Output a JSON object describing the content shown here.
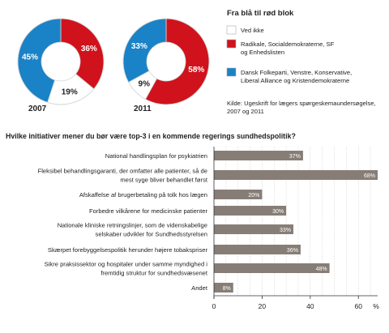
{
  "chart_data": [
    {
      "type": "pie",
      "variant": "donut",
      "year_label": "2007",
      "slices": [
        {
          "label": "Radikale, Socialdemokraterne, SF og Enhedslisten",
          "value": 36,
          "label_text": "36%",
          "color": "#d0121c"
        },
        {
          "label": "Ved ikke",
          "value": 19,
          "label_text": "19%",
          "color": "#ffffff"
        },
        {
          "label": "Dansk Folkeparti, Venstre, Konservative, Liberal Alliance og Kristendemokraterne",
          "value": 45,
          "label_text": "45%",
          "color": "#1a82c6"
        }
      ]
    },
    {
      "type": "pie",
      "variant": "donut",
      "year_label": "2011",
      "slices": [
        {
          "label": "Radikale, Socialdemokraterne, SF og Enhedslisten",
          "value": 58,
          "label_text": "58%",
          "color": "#d0121c"
        },
        {
          "label": "Ved ikke",
          "value": 9,
          "label_text": "9%",
          "color": "#ffffff"
        },
        {
          "label": "Dansk Folkeparti, Venstre, Konservative, Liberal Alliance og Kristendemokraterne",
          "value": 33,
          "label_text": "33%",
          "color": "#1a82c6"
        }
      ]
    },
    {
      "type": "bar",
      "orientation": "horizontal",
      "title": "Hvilke initiativer mener du bør være top-3 i en kommende regerings sundhedspolitik?",
      "categories": [
        "National handlingsplan for psykiatrien",
        "Fleksibel behandlingsgaranti, der omfatter alle patienter, så de mest syge bliver behandlet først",
        "Afskaffelse af brugerbetaling på tolk hos lægen",
        "Forbedre vilkårene for medicinske patienter",
        "Nationale kliniske retningslinjer, som de videnskabelige selskaber udvikler for Sundhedsstyrelsen",
        "Skærpet forebyggelsespolitik herunder højere tobakspriser",
        "Sikre praksissektor og hospitaler under samme myndighed i fremtidig struktur for sundhedsvæsenet",
        "Andet"
      ],
      "category_lines": [
        [
          "National handlingsplan for psykiatrien"
        ],
        [
          "Fleksibel behandlingsgaranti, der omfatter alle patienter, så de",
          "mest syge bliver behandlet først"
        ],
        [
          "Afskaffelse af brugerbetaling på tolk hos lægen"
        ],
        [
          "Forbedre vilkårene for medicinske patienter"
        ],
        [
          "Nationale kliniske retningslinjer, som de videnskabelige",
          "selskaber udvikler for Sundhedsstyrelsen"
        ],
        [
          "Skærpet forebyggelsespolitik herunder højere tobakspriser"
        ],
        [
          "Sikre praksissektor og hospitaler under samme myndighed i",
          "fremtidig struktur for sundhedsvæsenet"
        ],
        [
          "Andet"
        ]
      ],
      "values": [
        37,
        68,
        20,
        30,
        33,
        36,
        48,
        8
      ],
      "value_labels": [
        "37%",
        "68%",
        "20%",
        "30%",
        "33%",
        "36%",
        "48%",
        "8%"
      ],
      "xlim": [
        0,
        68
      ],
      "xticks": [
        0,
        20,
        40,
        60
      ],
      "unit": "%",
      "bar_color": "#877d77",
      "grid": true
    }
  ],
  "legend": {
    "title": "Fra blå til rød blok",
    "items": [
      {
        "lines": [
          "Ved ikke"
        ],
        "color": "#ffffff"
      },
      {
        "lines": [
          "Radikale, Socialdemokraterne, SF",
          "og Enhedslisten"
        ],
        "color": "#d0121c"
      },
      {
        "lines": [
          "Dansk Folkeparti, Venstre, Konservative,",
          "Liberal Alliance og Kristendemokraterne"
        ],
        "color": "#1a82c6"
      }
    ]
  },
  "source_lines": [
    "Kilde: Ugeskrift for lægers spørgeskemaundersøgelse,",
    "2007 og 2011"
  ]
}
